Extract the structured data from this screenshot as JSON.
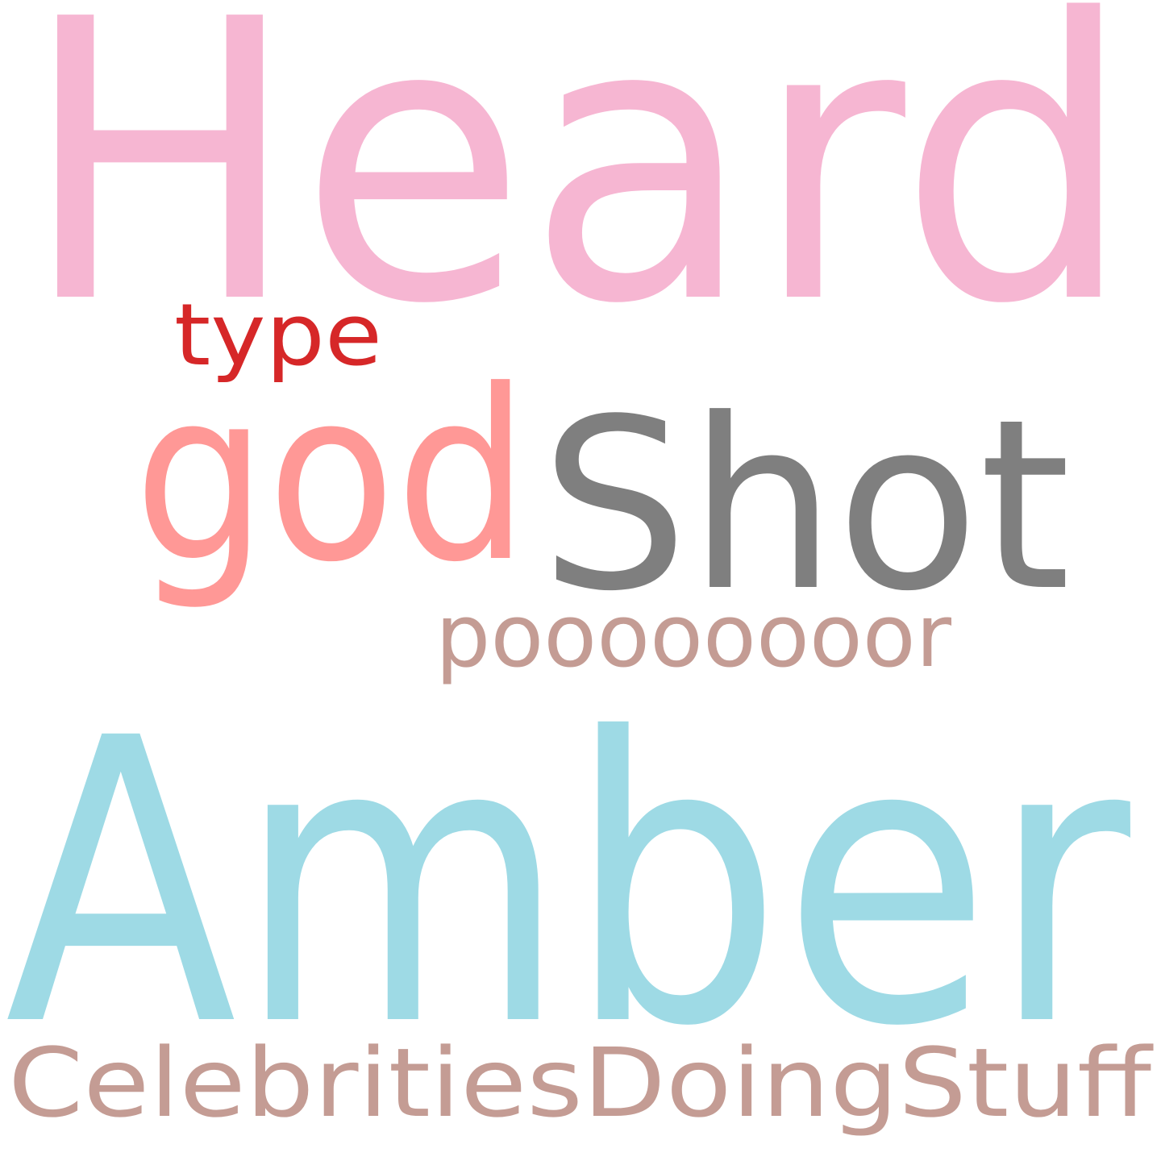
{
  "colors": {
    "background": "#ffffff",
    "heard": "#f6b6d2",
    "type": "#d62728",
    "god": "#ff9896",
    "shot": "#7f7f7f",
    "poor": "#c49c94",
    "amber": "#9edae5",
    "celebrities": "#c49c94"
  },
  "words": {
    "heard": "Heard",
    "type": "type",
    "god": "god",
    "shot": "Shot",
    "poor": "poooooooor",
    "amber": "Amber",
    "celebrities": "CelebritiesDoingStuff"
  }
}
